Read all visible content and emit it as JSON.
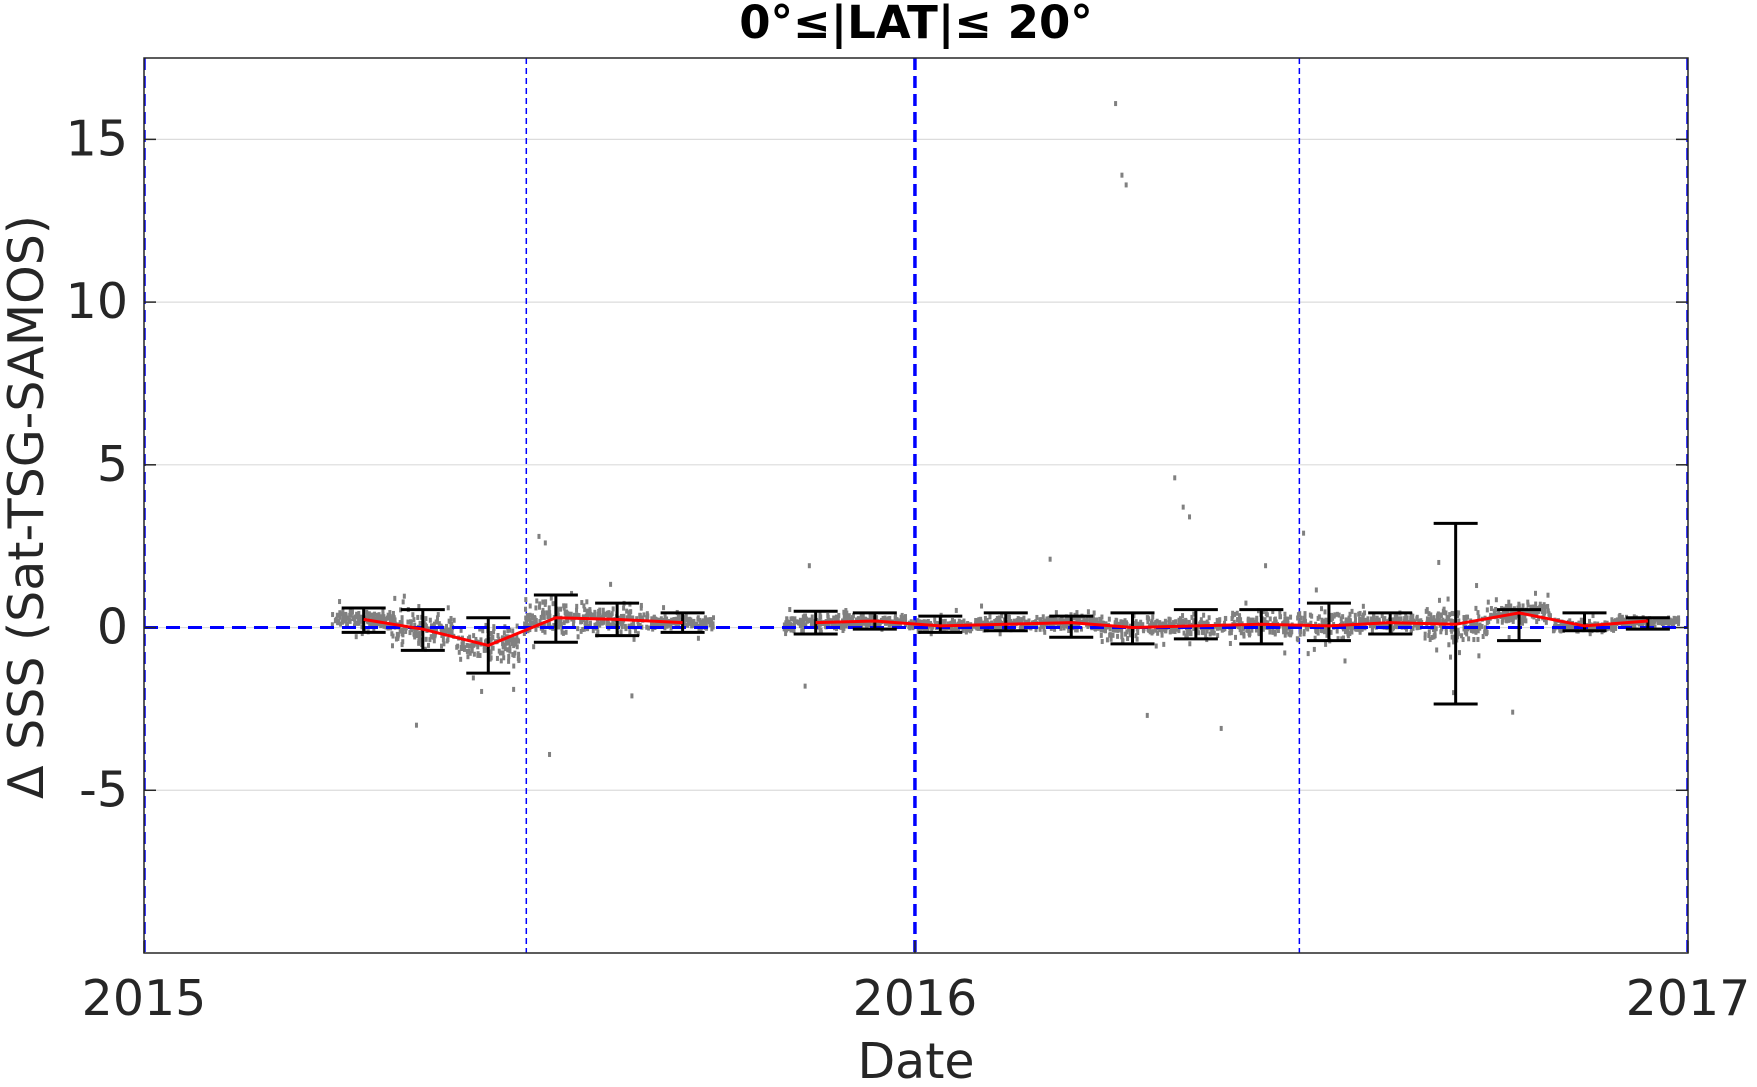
{
  "chart_data": {
    "type": "scatter",
    "title": "0°≤|LAT|≤ 20°",
    "xlabel": "Date",
    "ylabel": "Δ SSS (Sat-TSG-SAMOS)",
    "xlim": [
      "2015-01-01",
      "2017-01-01"
    ],
    "ylim": [
      -10,
      17.5
    ],
    "yticks": [
      -5,
      0,
      5,
      10,
      15
    ],
    "ytick_labels": [
      "-5",
      "0",
      "5",
      "10",
      "15"
    ],
    "xticks": [
      "2015-01-01",
      "2016-01-01",
      "2017-01-01"
    ],
    "xtick_labels": [
      "2015",
      "2016",
      "2017"
    ],
    "grid": true,
    "colors": {
      "scatter": "#808080",
      "mean_line": "#ff0000",
      "error_bars": "#000000",
      "reference_lines": "#0000ff"
    },
    "zero_line": {
      "y": 0,
      "style": "dashed",
      "color": "#0000ff"
    },
    "vertical_lines": [
      {
        "x": "2015-01-01",
        "style": "thick-dashed"
      },
      {
        "x": "2015-07-01",
        "style": "thin-dashed"
      },
      {
        "x": "2016-01-01",
        "style": "thick-dashed"
      },
      {
        "x": "2016-07-01",
        "style": "thin-dashed"
      },
      {
        "x": "2017-01-01",
        "style": "thick-dashed"
      }
    ],
    "series": [
      {
        "type": "errorbar",
        "x": [
          "2015-04-15",
          "2015-05-13",
          "2015-06-13",
          "2015-07-15",
          "2015-08-13",
          "2015-09-13",
          "2015-11-15",
          "2015-12-13",
          "2016-01-13",
          "2016-02-13",
          "2016-03-15",
          "2016-04-13",
          "2016-05-13",
          "2016-06-13",
          "2016-07-15",
          "2016-08-13",
          "2016-09-13",
          "2016-10-13",
          "2016-11-13",
          "2016-12-13"
        ],
        "mean": [
          0.25,
          -0.05,
          -0.55,
          0.3,
          0.25,
          0.15,
          0.15,
          0.2,
          0.05,
          0.1,
          0.15,
          0.0,
          0.05,
          0.1,
          0.05,
          0.15,
          0.1,
          0.45,
          0.05,
          0.2
        ],
        "upper": [
          0.6,
          0.55,
          0.3,
          1.0,
          0.75,
          0.45,
          0.5,
          0.45,
          0.35,
          0.45,
          0.35,
          0.45,
          0.55,
          0.55,
          0.75,
          0.45,
          3.2,
          0.55,
          0.45,
          0.3
        ],
        "lower": [
          -0.15,
          -0.7,
          -1.4,
          -0.45,
          -0.25,
          -0.15,
          -0.2,
          -0.05,
          -0.15,
          -0.1,
          -0.3,
          -0.5,
          -0.35,
          -0.5,
          -0.4,
          -0.2,
          -2.35,
          -0.4,
          -0.1,
          -0.05
        ]
      },
      {
        "type": "outliers",
        "x": [
          "2015-07-07",
          "2015-07-10",
          "2015-07-12",
          "2015-06-25",
          "2015-05-10",
          "2015-08-20",
          "2015-11-12",
          "2015-11-10",
          "2016-03-05",
          "2016-04-05",
          "2016-04-08",
          "2016-04-10",
          "2016-05-03",
          "2016-05-07",
          "2016-05-10",
          "2016-06-15",
          "2016-04-20",
          "2016-07-03",
          "2016-05-25",
          "2016-09-05",
          "2016-09-12",
          "2016-10-10"
        ],
        "y": [
          2.8,
          2.6,
          -3.9,
          -1.9,
          -3.0,
          -2.1,
          1.9,
          -1.8,
          2.1,
          16.1,
          13.9,
          13.6,
          4.6,
          3.7,
          3.4,
          1.9,
          -2.7,
          2.9,
          -3.1,
          2.0,
          -2.0,
          -2.6
        ]
      }
    ]
  }
}
